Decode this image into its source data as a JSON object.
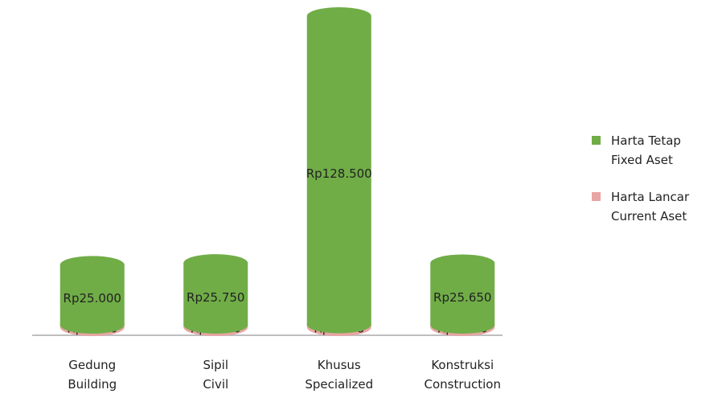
{
  "chart_data": {
    "type": "bar",
    "stacked": true,
    "categories": [
      "Gedung\nBuilding",
      "Sipil\nCivil",
      "Khusus\nSpecialized",
      "Konstruksi\nConstruction"
    ],
    "series": [
      {
        "name": "Harta Lancar\nCurrent Aset",
        "color": "#e8a5a3",
        "values": [
          1000,
          1000,
          1178,
          1000
        ],
        "value_labels": [
          "Rp1.000",
          "Rp1.000",
          "Rp1.178",
          "Rp1.000"
        ]
      },
      {
        "name": "Harta Tetap\nFixed Aset",
        "color": "#70ad47",
        "values": [
          25000,
          25750,
          128500,
          25650
        ],
        "value_labels": [
          "Rp25.000",
          "Rp25.750",
          "Rp128.500",
          "Rp25.650"
        ]
      }
    ],
    "legend": "right"
  }
}
